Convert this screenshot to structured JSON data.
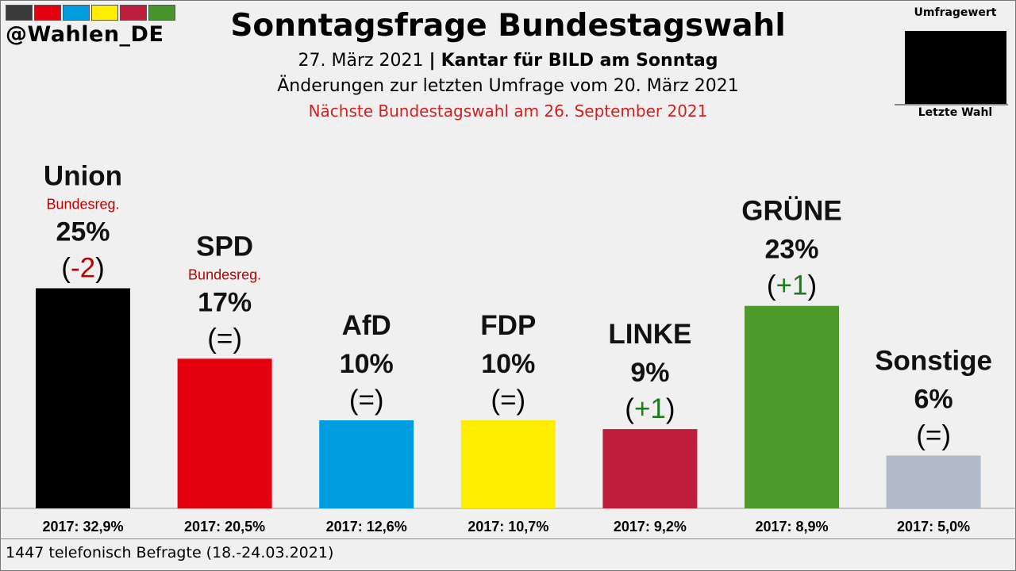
{
  "header": {
    "handle": "@Wahlen_DE",
    "brand_colors": [
      "#3a3a3a",
      "#e3000f",
      "#009ee0",
      "#ffed00",
      "#be1e3c",
      "#46962b"
    ],
    "title": "Sonntagsfrage Bundestagswahl",
    "date": "27. März 2021",
    "separator": "|",
    "institute": "Kantar für BILD am Sonntag",
    "changes_note": "Änderungen zur letzten Umfrage vom 20. März 2021",
    "next_election": "Nächste Bundestagswahl am 26. September 2021"
  },
  "legend": {
    "top_label": "Umfragewert",
    "bottom_label": "Letzte Wahl"
  },
  "footnote": "1447 telefonisch Befragte (18.-24.03.2021)",
  "chart_data": {
    "type": "bar",
    "categories": [
      "Union",
      "SPD",
      "AfD",
      "FDP",
      "LINKE",
      "GRÜNE",
      "Sonstige"
    ],
    "values": [
      25,
      17,
      10,
      10,
      9,
      23,
      6
    ],
    "value_labels": [
      "25%",
      "17%",
      "10%",
      "10%",
      "9%",
      "23%",
      "6%"
    ],
    "changes": [
      "(-2)",
      "(=)",
      "(=)",
      "(=)",
      "(+1)",
      "(+1)",
      "(=)"
    ],
    "change_direction": [
      "down",
      "same",
      "same",
      "same",
      "up",
      "up",
      "same"
    ],
    "government_note": [
      "Bundesreg.",
      "Bundesreg.",
      "",
      "",
      "",
      "",
      ""
    ],
    "previous_election_labels": [
      "2017: 32,9%",
      "2017: 20,5%",
      "2017: 12,6%",
      "2017: 10,7%",
      "2017: 9,2%",
      "2017: 8,9%",
      "2017: 5,0%"
    ],
    "colors": [
      "#000000",
      "#e3000f",
      "#009ee0",
      "#ffed00",
      "#be1e3c",
      "#4e9a2c",
      "#b0bac9"
    ],
    "change_colors": {
      "down": "#c00000",
      "up": "#1e7a1e",
      "same": "#000000"
    },
    "ylim": [
      0,
      35
    ]
  }
}
